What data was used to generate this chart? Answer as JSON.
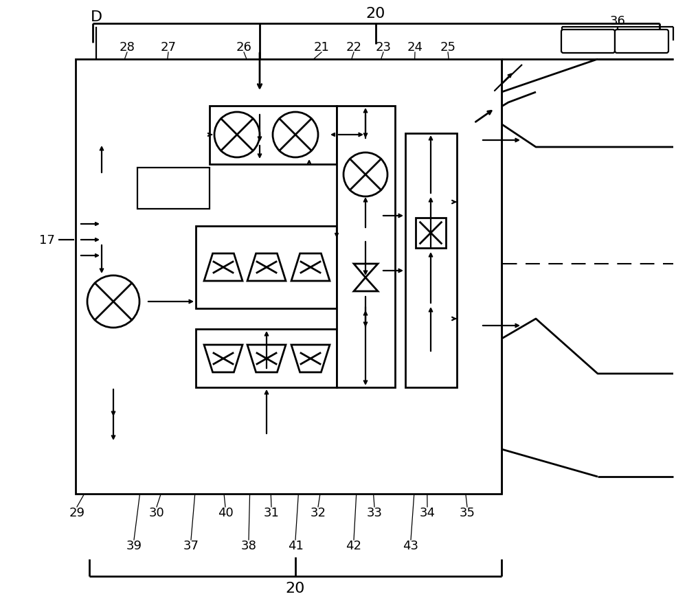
{
  "bg_color": "#ffffff",
  "line_color": "#000000",
  "lw": 1.6,
  "lw2": 2.0,
  "fig_w": 10.0,
  "fig_h": 8.95,
  "dpi": 100
}
